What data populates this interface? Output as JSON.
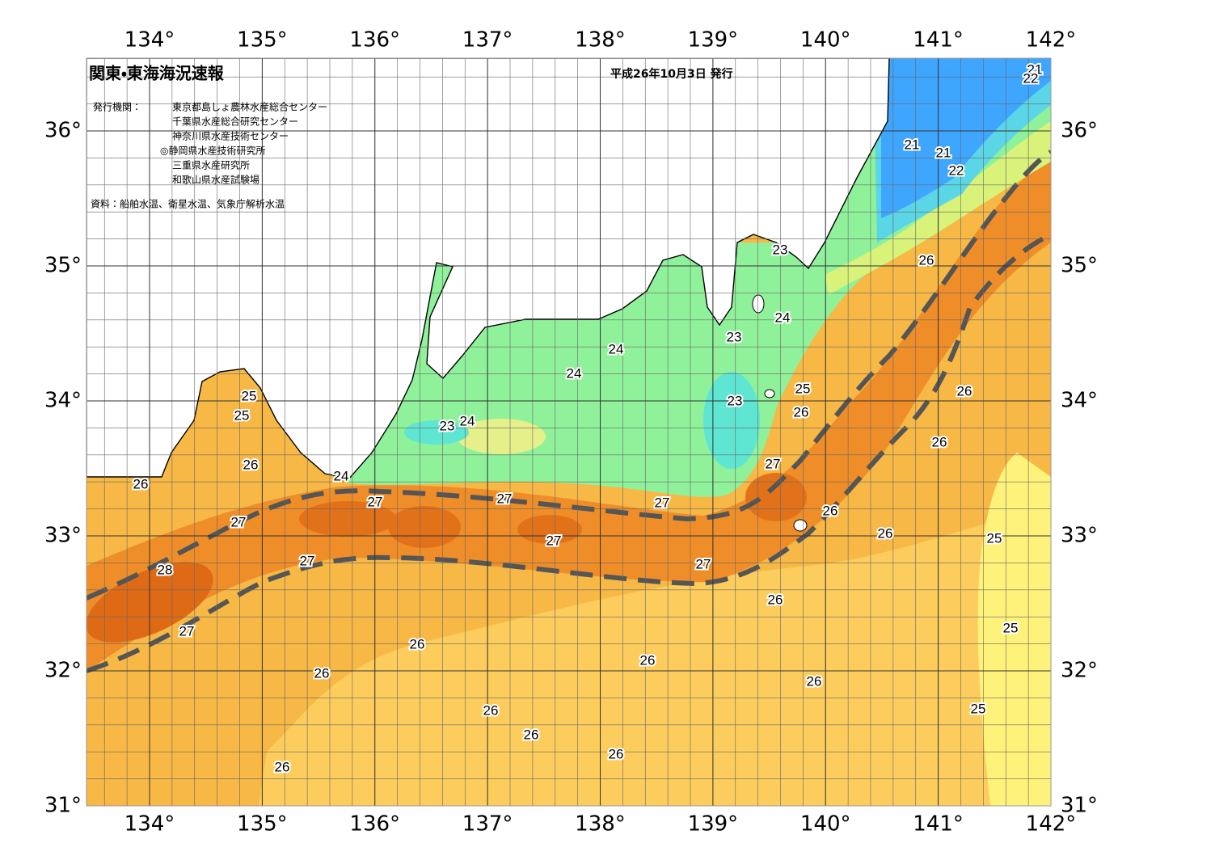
{
  "header": {
    "title": "関東・東海海況速報",
    "date": "平成26年10月3日 発行",
    "issuer_label": "発行機関：",
    "issuers": [
      "東京都島しょ農林水産総合センター",
      "千葉県水産総合研究センター",
      "神奈川県水産技術センター",
      "◎静岡県水産技術研究所",
      "三重県水産研究所",
      "和歌山県水産試験場"
    ],
    "source": "資料：船舶水温、衛星水温、気象庁解析水温"
  },
  "map": {
    "lon_ticks": [
      {
        "value": 134,
        "label": "134°"
      },
      {
        "value": 135,
        "label": "135°"
      },
      {
        "value": 136,
        "label": "136°"
      },
      {
        "value": 137,
        "label": "137°"
      },
      {
        "value": 138,
        "label": "138°"
      },
      {
        "value": 139,
        "label": "139°"
      },
      {
        "value": 140,
        "label": "140°"
      },
      {
        "value": 141,
        "label": "141°"
      },
      {
        "value": 142,
        "label": "142°"
      }
    ],
    "lat_ticks": [
      {
        "value": 31,
        "label": "31°"
      },
      {
        "value": 32,
        "label": "32°"
      },
      {
        "value": 33,
        "label": "33°"
      },
      {
        "value": 34,
        "label": "34°"
      },
      {
        "value": 35,
        "label": "35°"
      },
      {
        "value": 36,
        "label": "36°"
      }
    ],
    "contour_labels": [
      "21",
      "22",
      "21",
      "21",
      "22",
      "23",
      "26",
      "24",
      "23",
      "24",
      "24",
      "25",
      "26",
      "23",
      "25",
      "25",
      "26",
      "23",
      "24",
      "26",
      "27",
      "26",
      "24",
      "26",
      "27",
      "27",
      "27",
      "26",
      "27",
      "26",
      "25",
      "27",
      "27",
      "27",
      "28",
      "26",
      "25",
      "27",
      "26",
      "26",
      "26",
      "26",
      "26",
      "25",
      "26",
      "26",
      "26"
    ]
  }
}
